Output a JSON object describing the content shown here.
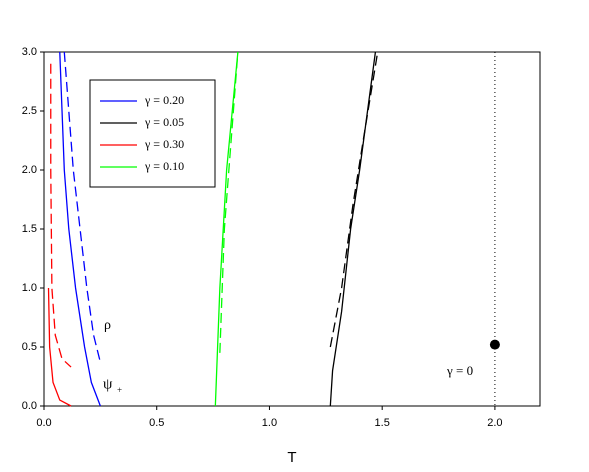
{
  "chart_data": {
    "type": "line",
    "x_label": "T",
    "xlim": [
      0,
      2.2
    ],
    "ylim": [
      0,
      3.0
    ],
    "xticks": [
      {
        "value": 0,
        "label": "0.0"
      },
      {
        "value": 0.5,
        "label": "0.5"
      },
      {
        "value": 1.0,
        "label": "1.0"
      },
      {
        "value": 1.5,
        "label": "1.5"
      },
      {
        "value": 2.0,
        "label": "2.0"
      }
    ],
    "yticks": [
      {
        "value": 0,
        "label": "0.0"
      },
      {
        "value": 0.5,
        "label": "0.5"
      },
      {
        "value": 1.0,
        "label": "1.0"
      },
      {
        "value": 1.5,
        "label": "1.5"
      },
      {
        "value": 2.0,
        "label": "2.0"
      },
      {
        "value": 2.5,
        "label": "2.5"
      },
      {
        "value": 3.0,
        "label": "3.0"
      }
    ],
    "series": [
      {
        "name": "γ = 0.20",
        "color": "#0000ff",
        "dashed": false,
        "x": [
          0.07,
          0.08,
          0.09,
          0.11,
          0.14,
          0.18,
          0.21,
          0.25
        ],
        "values": [
          3.0,
          2.5,
          2.0,
          1.5,
          1.0,
          0.5,
          0.2,
          0.0
        ]
      },
      {
        "name": "γ = 0.05",
        "color": "#000000",
        "dashed": false,
        "x": [
          1.27,
          1.28,
          1.32,
          1.36,
          1.4,
          1.47
        ],
        "values": [
          0.0,
          0.3,
          0.8,
          1.5,
          2.0,
          3.0
        ]
      },
      {
        "name": "γ = 0.30",
        "color": "#ff0000",
        "dashed": false,
        "x": [
          0.02,
          0.025,
          0.04,
          0.07,
          0.12
        ],
        "values": [
          1.0,
          0.5,
          0.2,
          0.05,
          0.0
        ]
      },
      {
        "name": "γ = 0.10",
        "color": "#00ff00",
        "dashed": false,
        "x": [
          0.76,
          0.78,
          0.81,
          0.86
        ],
        "values": [
          0.0,
          1.0,
          2.0,
          3.0
        ]
      },
      {
        "color": "#0000ff",
        "dashed": true,
        "x": [
          0.09,
          0.11,
          0.13,
          0.16,
          0.19,
          0.22,
          0.25
        ],
        "values": [
          3.0,
          2.5,
          2.0,
          1.5,
          1.0,
          0.6,
          0.37
        ]
      },
      {
        "color": "#000000",
        "dashed": true,
        "x": [
          1.27,
          1.32,
          1.37,
          1.42,
          1.48
        ],
        "values": [
          0.5,
          1.0,
          1.7,
          2.3,
          3.0
        ]
      },
      {
        "color": "#ff0000",
        "dashed": true,
        "x": [
          0.03,
          0.03,
          0.035,
          0.05,
          0.08,
          0.12
        ],
        "values": [
          2.9,
          2.0,
          1.0,
          0.6,
          0.4,
          0.33
        ]
      },
      {
        "color": "#00ff00",
        "dashed": true,
        "x": [
          0.78,
          0.8,
          0.84,
          0.86
        ],
        "values": [
          0.45,
          1.5,
          2.5,
          3.0
        ]
      }
    ],
    "vline": 2.0,
    "point": {
      "x": 2.0,
      "y": 0.52
    },
    "annotations": [
      "ρ",
      "ψ",
      "+",
      "γ = 0"
    ]
  }
}
